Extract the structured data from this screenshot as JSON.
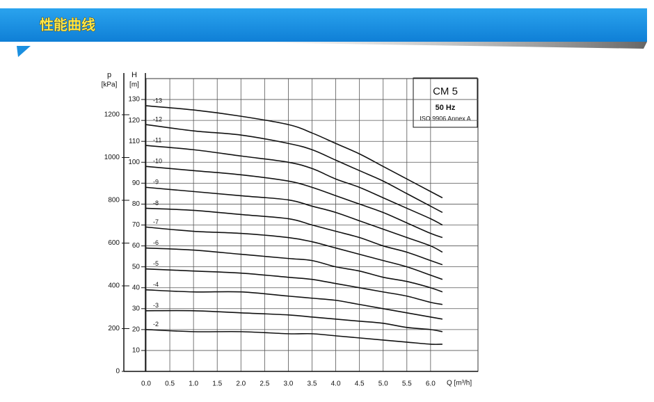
{
  "header": {
    "title": "性能曲线"
  },
  "chart_data": {
    "type": "line",
    "info_box": {
      "model": "CM 5",
      "frequency": "50 Hz",
      "standard": "ISO 9906 Annex A"
    },
    "y_label": "H",
    "y_unit": "[m]",
    "y2_label": "p",
    "y2_unit": "[kPa]",
    "x_label": "Q [m³/h]",
    "x": [
      0,
      1,
      2,
      3,
      3.5,
      4,
      4.5,
      5,
      5.5,
      6,
      6.25
    ],
    "xlim": [
      0,
      7
    ],
    "xticks": [
      {
        "value": 0,
        "label": "0.0"
      },
      0.5,
      {
        "value": 1,
        "label": "1.0"
      },
      1.5,
      {
        "value": 2,
        "label": "2.0"
      },
      2.5,
      {
        "value": 3,
        "label": "3.0"
      },
      3.5,
      {
        "value": 4,
        "label": "4.0"
      },
      4.5,
      {
        "value": 5,
        "label": "5.0"
      },
      5.5,
      {
        "value": 6,
        "label": "6.0"
      }
    ],
    "ylim": [
      0,
      140
    ],
    "yticks": [
      10,
      20,
      30,
      40,
      50,
      60,
      70,
      80,
      90,
      100,
      110,
      120,
      130
    ],
    "y2lim": [
      0,
      1369
    ],
    "y2ticks": [
      0,
      200,
      400,
      600,
      800,
      1000,
      1200
    ],
    "grid": true,
    "series": [
      {
        "name": "-13",
        "color": "#111111",
        "values": [
          127,
          125,
          122,
          118,
          114,
          109,
          104,
          98,
          92,
          86,
          83
        ]
      },
      {
        "name": "-12",
        "color": "#111111",
        "values": [
          118,
          115,
          113,
          109,
          106,
          101,
          96,
          91,
          85,
          79,
          76
        ]
      },
      {
        "name": "-11",
        "color": "#111111",
        "values": [
          108,
          106,
          103,
          100,
          97,
          92,
          88,
          83,
          78,
          73,
          70
        ]
      },
      {
        "name": "-10",
        "color": "#111111",
        "values": [
          98,
          96,
          94,
          91,
          88,
          84,
          80,
          76,
          71,
          66,
          64
        ]
      },
      {
        "name": "-9",
        "color": "#111111",
        "values": [
          88,
          86,
          84,
          82,
          79,
          76,
          72,
          68,
          64,
          60,
          57
        ]
      },
      {
        "name": "-8",
        "color": "#111111",
        "values": [
          78,
          77,
          75,
          73,
          70,
          67,
          64,
          60,
          57,
          53,
          51
        ]
      },
      {
        "name": "-7",
        "color": "#111111",
        "values": [
          69,
          67,
          66,
          64,
          62,
          59,
          56,
          53,
          50,
          46,
          44
        ]
      },
      {
        "name": "-6",
        "color": "#111111",
        "values": [
          59,
          58,
          56,
          54,
          53,
          50,
          48,
          45,
          43,
          40,
          38
        ]
      },
      {
        "name": "-5",
        "color": "#111111",
        "values": [
          49,
          48,
          47,
          45,
          44,
          42,
          40,
          38,
          36,
          33,
          32
        ]
      },
      {
        "name": "-4",
        "color": "#111111",
        "values": [
          39,
          38,
          38,
          36,
          35,
          34,
          32,
          30,
          28,
          26,
          25
        ]
      },
      {
        "name": "-3",
        "color": "#111111",
        "values": [
          29,
          29,
          28,
          27,
          26,
          25,
          24,
          23,
          21,
          20,
          19
        ]
      },
      {
        "name": "-2",
        "color": "#111111",
        "values": [
          20,
          19,
          19,
          18,
          18,
          17,
          16,
          15,
          14,
          13,
          13
        ]
      }
    ]
  }
}
